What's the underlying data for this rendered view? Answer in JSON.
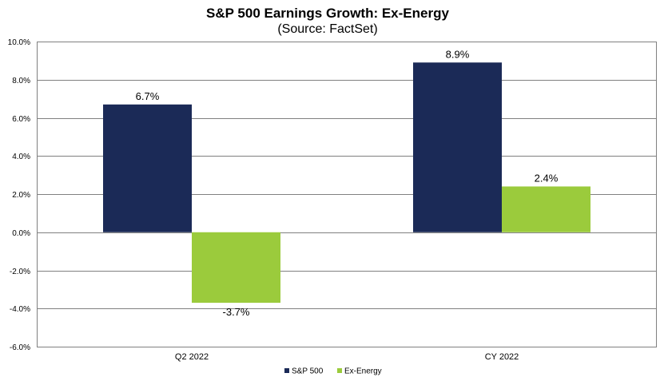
{
  "chart_data": {
    "type": "bar",
    "title": "S&P 500 Earnings Growth: Ex-Energy",
    "subtitle": "(Source: FactSet)",
    "categories": [
      "Q2 2022",
      "CY 2022"
    ],
    "series": [
      {
        "name": "S&P 500",
        "values": [
          6.7,
          8.9
        ],
        "labels": [
          "6.7%",
          "8.9%"
        ],
        "color": "#1b2a57"
      },
      {
        "name": "Ex-Energy",
        "values": [
          -3.7,
          2.4
        ],
        "labels": [
          "-3.7%",
          "2.4%"
        ],
        "color": "#9bcb3c"
      }
    ],
    "ylim": [
      -6,
      10
    ],
    "yticks": [
      10,
      8,
      6,
      4,
      2,
      0,
      -2,
      -4,
      -6
    ],
    "ytick_labels": [
      "10.0%",
      "8.0%",
      "6.0%",
      "4.0%",
      "2.0%",
      "0.0%",
      "-2.0%",
      "-4.0%",
      "-6.0%"
    ],
    "xlabel": "",
    "ylabel": "",
    "grid": true,
    "legend_position": "bottom"
  }
}
